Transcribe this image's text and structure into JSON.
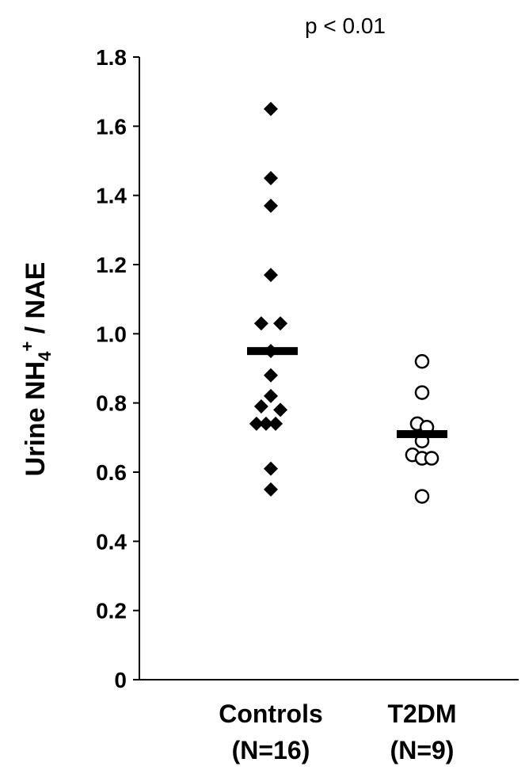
{
  "chart_data": {
    "type": "scatter",
    "annotation": "p < 0.01",
    "ylabel": {
      "prefix": "Urine NH",
      "subscript": "4",
      "superscript": "+",
      "suffix": " / NAE"
    },
    "ylim": [
      0,
      1.8
    ],
    "yticks": [
      "0",
      "0.2",
      "0.4",
      "0.6",
      "0.8",
      "1.0",
      "1.2",
      "1.4",
      "1.6",
      "1.8"
    ],
    "grid": false,
    "groups": [
      {
        "label_line1": "Controls",
        "label_line2": "(N=16)",
        "marker": "filled-diamond",
        "color": "#000000",
        "mean": 0.95,
        "values": [
          1.65,
          1.45,
          1.37,
          1.17,
          1.03,
          1.03,
          0.95,
          0.88,
          0.82,
          0.79,
          0.78,
          0.74,
          0.74,
          0.74,
          0.61,
          0.55
        ],
        "offsets": [
          0,
          0,
          0,
          0,
          -1,
          1,
          0,
          0,
          0,
          -1,
          1,
          -1.5,
          -0.5,
          0.5,
          0,
          0
        ]
      },
      {
        "label_line1": "T2DM",
        "label_line2": "(N=9)",
        "marker": "open-circle",
        "color": "#000000",
        "mean": 0.71,
        "values": [
          0.92,
          0.83,
          0.74,
          0.73,
          0.69,
          0.65,
          0.64,
          0.64,
          0.53
        ],
        "offsets": [
          0,
          0,
          -0.5,
          0.5,
          0,
          -1,
          0,
          1,
          0
        ]
      }
    ]
  }
}
